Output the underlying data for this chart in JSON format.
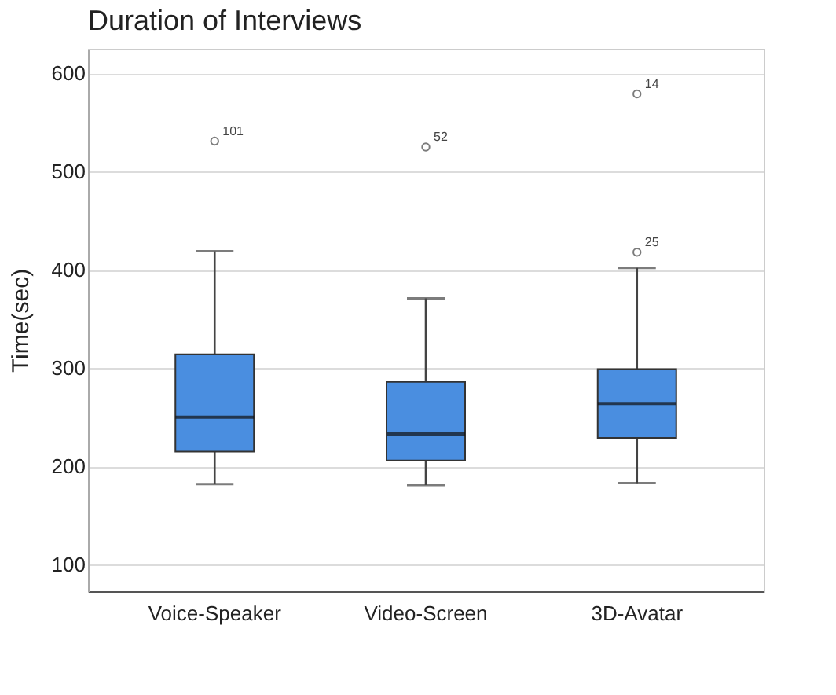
{
  "chart_data": {
    "type": "box",
    "title": "Duration of Interviews",
    "ylabel": "Time(sec)",
    "categories": [
      "Voice-Speaker",
      "Video-Screen",
      "3D-Avatar"
    ],
    "color": "#4a8ee0",
    "boxes": [
      {
        "low": 182,
        "q1": 215,
        "median": 250,
        "q3": 314,
        "high": 419,
        "outliers": [
          531
        ]
      },
      {
        "low": 181,
        "q1": 206,
        "median": 233,
        "q3": 286,
        "high": 371,
        "outliers": [
          525
        ]
      },
      {
        "low": 183,
        "q1": 229,
        "median": 264,
        "q3": 299,
        "high": 402,
        "outliers": [
          418,
          579
        ]
      }
    ],
    "annotations": [
      "101",
      "52",
      "25",
      "14"
    ],
    "ylim": [
      73,
      625
    ],
    "yticks": [
      100,
      200,
      300,
      400,
      500,
      600
    ],
    "grid": "y"
  }
}
